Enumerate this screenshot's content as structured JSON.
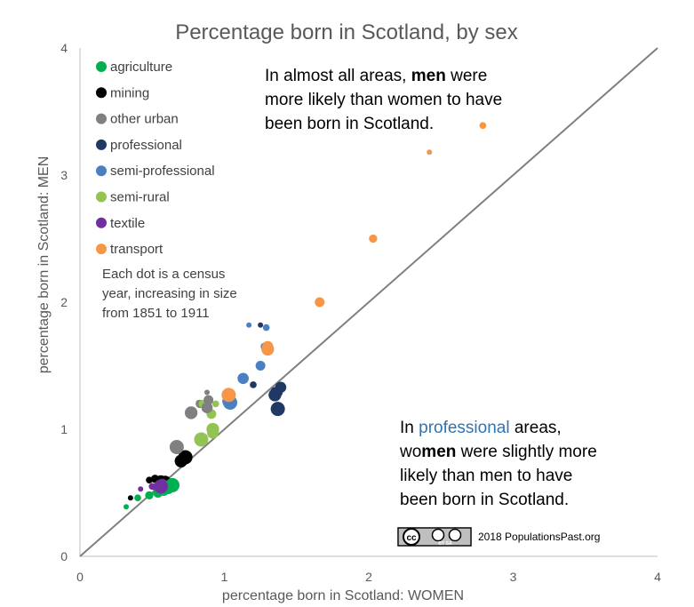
{
  "chart_data": {
    "type": "scatter",
    "title": "Percentage born in Scotland, by sex",
    "xlabel": "percentage born in Scotland: WOMEN",
    "ylabel": "percentage born in Scotland: MEN",
    "xlim": [
      0,
      4
    ],
    "ylim": [
      0,
      4
    ],
    "xticks": [
      0,
      1,
      2,
      3,
      4
    ],
    "yticks": [
      0,
      1,
      2,
      3,
      4
    ],
    "reference_line": "y = x",
    "size_meaning": "census year 1851 to 1911",
    "series": [
      {
        "name": "agriculture",
        "color": "#00b050",
        "points": [
          {
            "x": 0.32,
            "y": 0.39,
            "year": 1851
          },
          {
            "x": 0.4,
            "y": 0.46,
            "year": 1861
          },
          {
            "x": 0.48,
            "y": 0.48,
            "year": 1871
          },
          {
            "x": 0.54,
            "y": 0.5,
            "year": 1881
          },
          {
            "x": 0.58,
            "y": 0.52,
            "year": 1891
          },
          {
            "x": 0.61,
            "y": 0.54,
            "year": 1901
          },
          {
            "x": 0.64,
            "y": 0.56,
            "year": 1911
          }
        ]
      },
      {
        "name": "mining",
        "color": "#000000",
        "points": [
          {
            "x": 0.35,
            "y": 0.46,
            "year": 1851
          },
          {
            "x": 0.48,
            "y": 0.6,
            "year": 1861
          },
          {
            "x": 0.52,
            "y": 0.61,
            "year": 1871
          },
          {
            "x": 0.56,
            "y": 0.6,
            "year": 1881
          },
          {
            "x": 0.59,
            "y": 0.59,
            "year": 1891
          },
          {
            "x": 0.7,
            "y": 0.75,
            "year": 1901
          },
          {
            "x": 0.73,
            "y": 0.78,
            "year": 1911
          }
        ]
      },
      {
        "name": "other urban",
        "color": "#808080",
        "points": [
          {
            "x": 0.88,
            "y": 1.29,
            "year": 1851
          },
          {
            "x": 0.87,
            "y": 1.19,
            "year": 1861
          },
          {
            "x": 0.83,
            "y": 1.2,
            "year": 1871
          },
          {
            "x": 0.89,
            "y": 1.23,
            "year": 1881
          },
          {
            "x": 0.88,
            "y": 1.17,
            "year": 1891
          },
          {
            "x": 0.77,
            "y": 1.13,
            "year": 1901
          },
          {
            "x": 0.67,
            "y": 0.86,
            "year": 1911
          }
        ]
      },
      {
        "name": "professional",
        "color": "#1f3864",
        "points": [
          {
            "x": 1.25,
            "y": 1.82,
            "year": 1851
          },
          {
            "x": 1.2,
            "y": 1.35,
            "year": 1861
          },
          {
            "x": 1.35,
            "y": 1.3,
            "year": 1871
          },
          {
            "x": 1.37,
            "y": 1.29,
            "year": 1881
          },
          {
            "x": 1.39,
            "y": 1.33,
            "year": 1891
          },
          {
            "x": 1.35,
            "y": 1.27,
            "year": 1901
          },
          {
            "x": 1.37,
            "y": 1.16,
            "year": 1911
          }
        ]
      },
      {
        "name": "semi-professional",
        "color": "#4a7fc1",
        "points": [
          {
            "x": 1.17,
            "y": 1.82,
            "year": 1851
          },
          {
            "x": 1.29,
            "y": 1.8,
            "year": 1861
          },
          {
            "x": 1.28,
            "y": 1.65,
            "year": 1871
          },
          {
            "x": 1.25,
            "y": 1.5,
            "year": 1881
          },
          {
            "x": 1.13,
            "y": 1.4,
            "year": 1891
          },
          {
            "x": 1.03,
            "y": 1.22,
            "year": 1901
          },
          {
            "x": 1.04,
            "y": 1.21,
            "year": 1911
          }
        ]
      },
      {
        "name": "semi-rural",
        "color": "#92c353",
        "points": [
          {
            "x": 0.82,
            "y": 1.21,
            "year": 1851
          },
          {
            "x": 0.94,
            "y": 1.2,
            "year": 1861
          },
          {
            "x": 0.85,
            "y": 1.2,
            "year": 1871
          },
          {
            "x": 0.91,
            "y": 1.12,
            "year": 1881
          },
          {
            "x": 0.92,
            "y": 0.97,
            "year": 1891
          },
          {
            "x": 0.92,
            "y": 1.0,
            "year": 1901
          },
          {
            "x": 0.84,
            "y": 0.92,
            "year": 1911
          }
        ]
      },
      {
        "name": "textile",
        "color": "#7030a0",
        "points": [
          {
            "x": 0.42,
            "y": 0.53,
            "year": 1851
          },
          {
            "x": 0.5,
            "y": 0.55,
            "year": 1861
          },
          {
            "x": 0.53,
            "y": 0.54,
            "year": 1871
          },
          {
            "x": 0.55,
            "y": 0.56,
            "year": 1881
          },
          {
            "x": 0.56,
            "y": 0.55,
            "year": 1891
          },
          {
            "x": 0.57,
            "y": 0.56,
            "year": 1901
          },
          {
            "x": 0.56,
            "y": 0.55,
            "year": 1911
          }
        ]
      },
      {
        "name": "transport",
        "color": "#f79646",
        "points": [
          {
            "x": 2.42,
            "y": 3.18,
            "year": 1851
          },
          {
            "x": 2.79,
            "y": 3.39,
            "year": 1861
          },
          {
            "x": 2.03,
            "y": 2.5,
            "year": 1871
          },
          {
            "x": 1.66,
            "y": 2.0,
            "year": 1881
          },
          {
            "x": 1.3,
            "y": 1.65,
            "year": 1891
          },
          {
            "x": 1.3,
            "y": 1.63,
            "year": 1901
          },
          {
            "x": 1.03,
            "y": 1.27,
            "year": 1911
          }
        ]
      }
    ],
    "legend_note": [
      "Each dot is a census",
      "year, increasing in size",
      "from  1851 to 1911"
    ],
    "annotation_men": {
      "lines": [
        [
          {
            "text": "In almost all areas, ",
            "bold": false
          },
          {
            "text": "men",
            "bold": true
          },
          {
            "text": " were",
            "bold": false
          }
        ],
        [
          {
            "text": "more likely than women to have",
            "bold": false
          }
        ],
        [
          {
            "text": "been born in Scotland.",
            "bold": false
          }
        ]
      ]
    },
    "annotation_women": {
      "lines": [
        [
          {
            "text": "In ",
            "bold": false
          },
          {
            "text": "professional",
            "bold": false,
            "color": "#2e75b6"
          },
          {
            "text": " areas,",
            "bold": false
          }
        ],
        [
          {
            "text": "wo",
            "bold": false
          },
          {
            "text": "men",
            "bold": true
          },
          {
            "text": " were slightly more",
            "bold": false
          }
        ],
        [
          {
            "text": "likely than men to have",
            "bold": false
          }
        ],
        [
          {
            "text": "been born in Scotland.",
            "bold": false
          }
        ]
      ]
    },
    "credit": {
      "badge_text": "cc",
      "badge_sub": "BY    SA",
      "text": "2018 PopulationsPast.org"
    },
    "colors": {
      "diagonal": "#7f7f7f",
      "axis": "#bfbfbf"
    }
  }
}
